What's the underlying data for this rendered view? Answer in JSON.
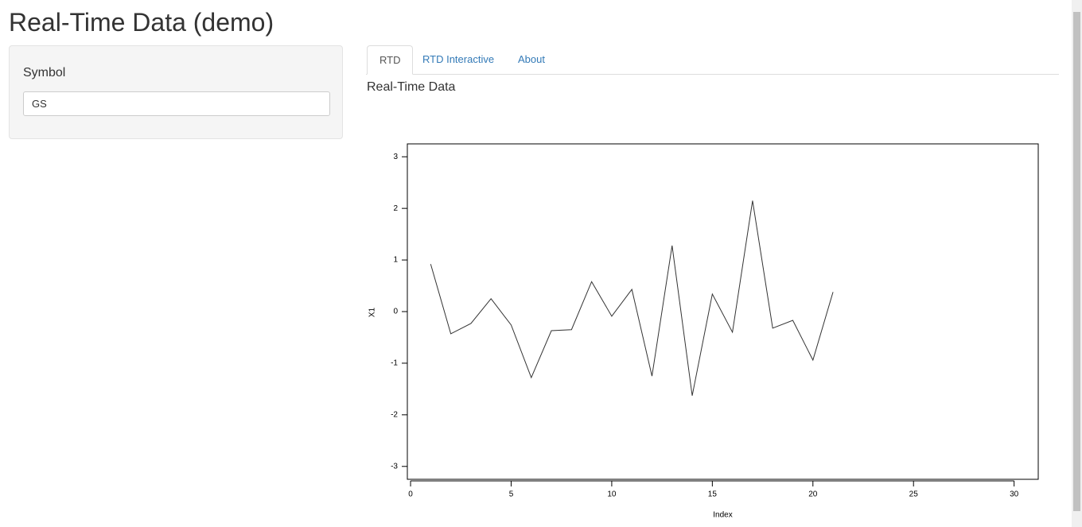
{
  "header": {
    "title": "Real-Time Data (demo)"
  },
  "sidebar": {
    "label": "Symbol",
    "input_value": "GS"
  },
  "tabs": [
    "RTD",
    "RTD Interactive",
    "About"
  ],
  "panel": {
    "heading": "Real-Time Data"
  },
  "chart_data": {
    "type": "line",
    "x": [
      1,
      2,
      3,
      4,
      5,
      6,
      7,
      8,
      9,
      10,
      11,
      12,
      13,
      14,
      15,
      16,
      17,
      18,
      19,
      20,
      21
    ],
    "values": [
      0.92,
      -0.43,
      -0.23,
      0.25,
      -0.26,
      -1.28,
      -0.37,
      -0.35,
      0.58,
      -0.09,
      0.43,
      -1.25,
      1.28,
      -1.63,
      0.34,
      -0.4,
      2.15,
      -0.32,
      -0.17,
      -0.94,
      0.38
    ],
    "color": "#333333",
    "xlabel": "Index",
    "ylabel": "X1",
    "xlim": [
      -0.16,
      31.2
    ],
    "ylim": [
      -3.25,
      3.25
    ],
    "xticks": [
      0,
      5,
      10,
      15,
      20,
      25,
      30
    ],
    "yticks": [
      -3,
      -2,
      -1,
      0,
      1,
      2,
      3
    ]
  }
}
